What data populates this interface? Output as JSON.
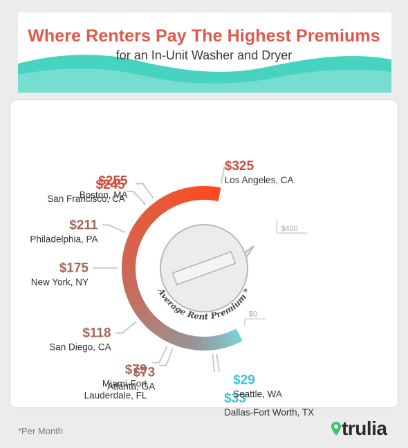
{
  "title": "Where Renters Pay The Highest Premiums",
  "subtitle": "for an In-Unit Washer and Dryer",
  "footnote": "*Per Month",
  "brand": "trulia",
  "icons": {
    "brand_pin": "map-pin-icon"
  },
  "colors": {
    "title": "#e2574c",
    "wave": "#47d3bf",
    "gauge_high": "#ff4a1e",
    "gauge_mid": "#c76c5e",
    "gauge_low": "#7ecdd6",
    "high_value": "#d24b3a",
    "mid_value": "#a5655a",
    "low_value": "#3cc3d7"
  },
  "chart_data": {
    "type": "radial-gauge",
    "center_label": "Average Rent Premium *",
    "scale": {
      "min_label": "$0",
      "max_label": "$400",
      "min": 0,
      "max": 400
    },
    "points": [
      {
        "city": "Los Angeles, CA",
        "value": 325,
        "value_label": "$325"
      },
      {
        "city": "Boston, MA",
        "value": 255,
        "value_label": "$255"
      },
      {
        "city": "San Francisco, CA",
        "value": 245,
        "value_label": "$245"
      },
      {
        "city": "Philadelphia, PA",
        "value": 211,
        "value_label": "$211"
      },
      {
        "city": "New York, NY",
        "value": 175,
        "value_label": "$175"
      },
      {
        "city": "San Diego, CA",
        "value": 118,
        "value_label": "$118"
      },
      {
        "city": "Miami-Fort Lauderdale, FL",
        "value": 79,
        "value_label": "$79"
      },
      {
        "city": "Atlanta, GA",
        "value": 73,
        "value_label": "$73"
      },
      {
        "city": "Dallas-Fort Worth, TX",
        "value": 33,
        "value_label": "$33"
      },
      {
        "city": "Seattle, WA",
        "value": 29,
        "value_label": "$29"
      }
    ]
  }
}
